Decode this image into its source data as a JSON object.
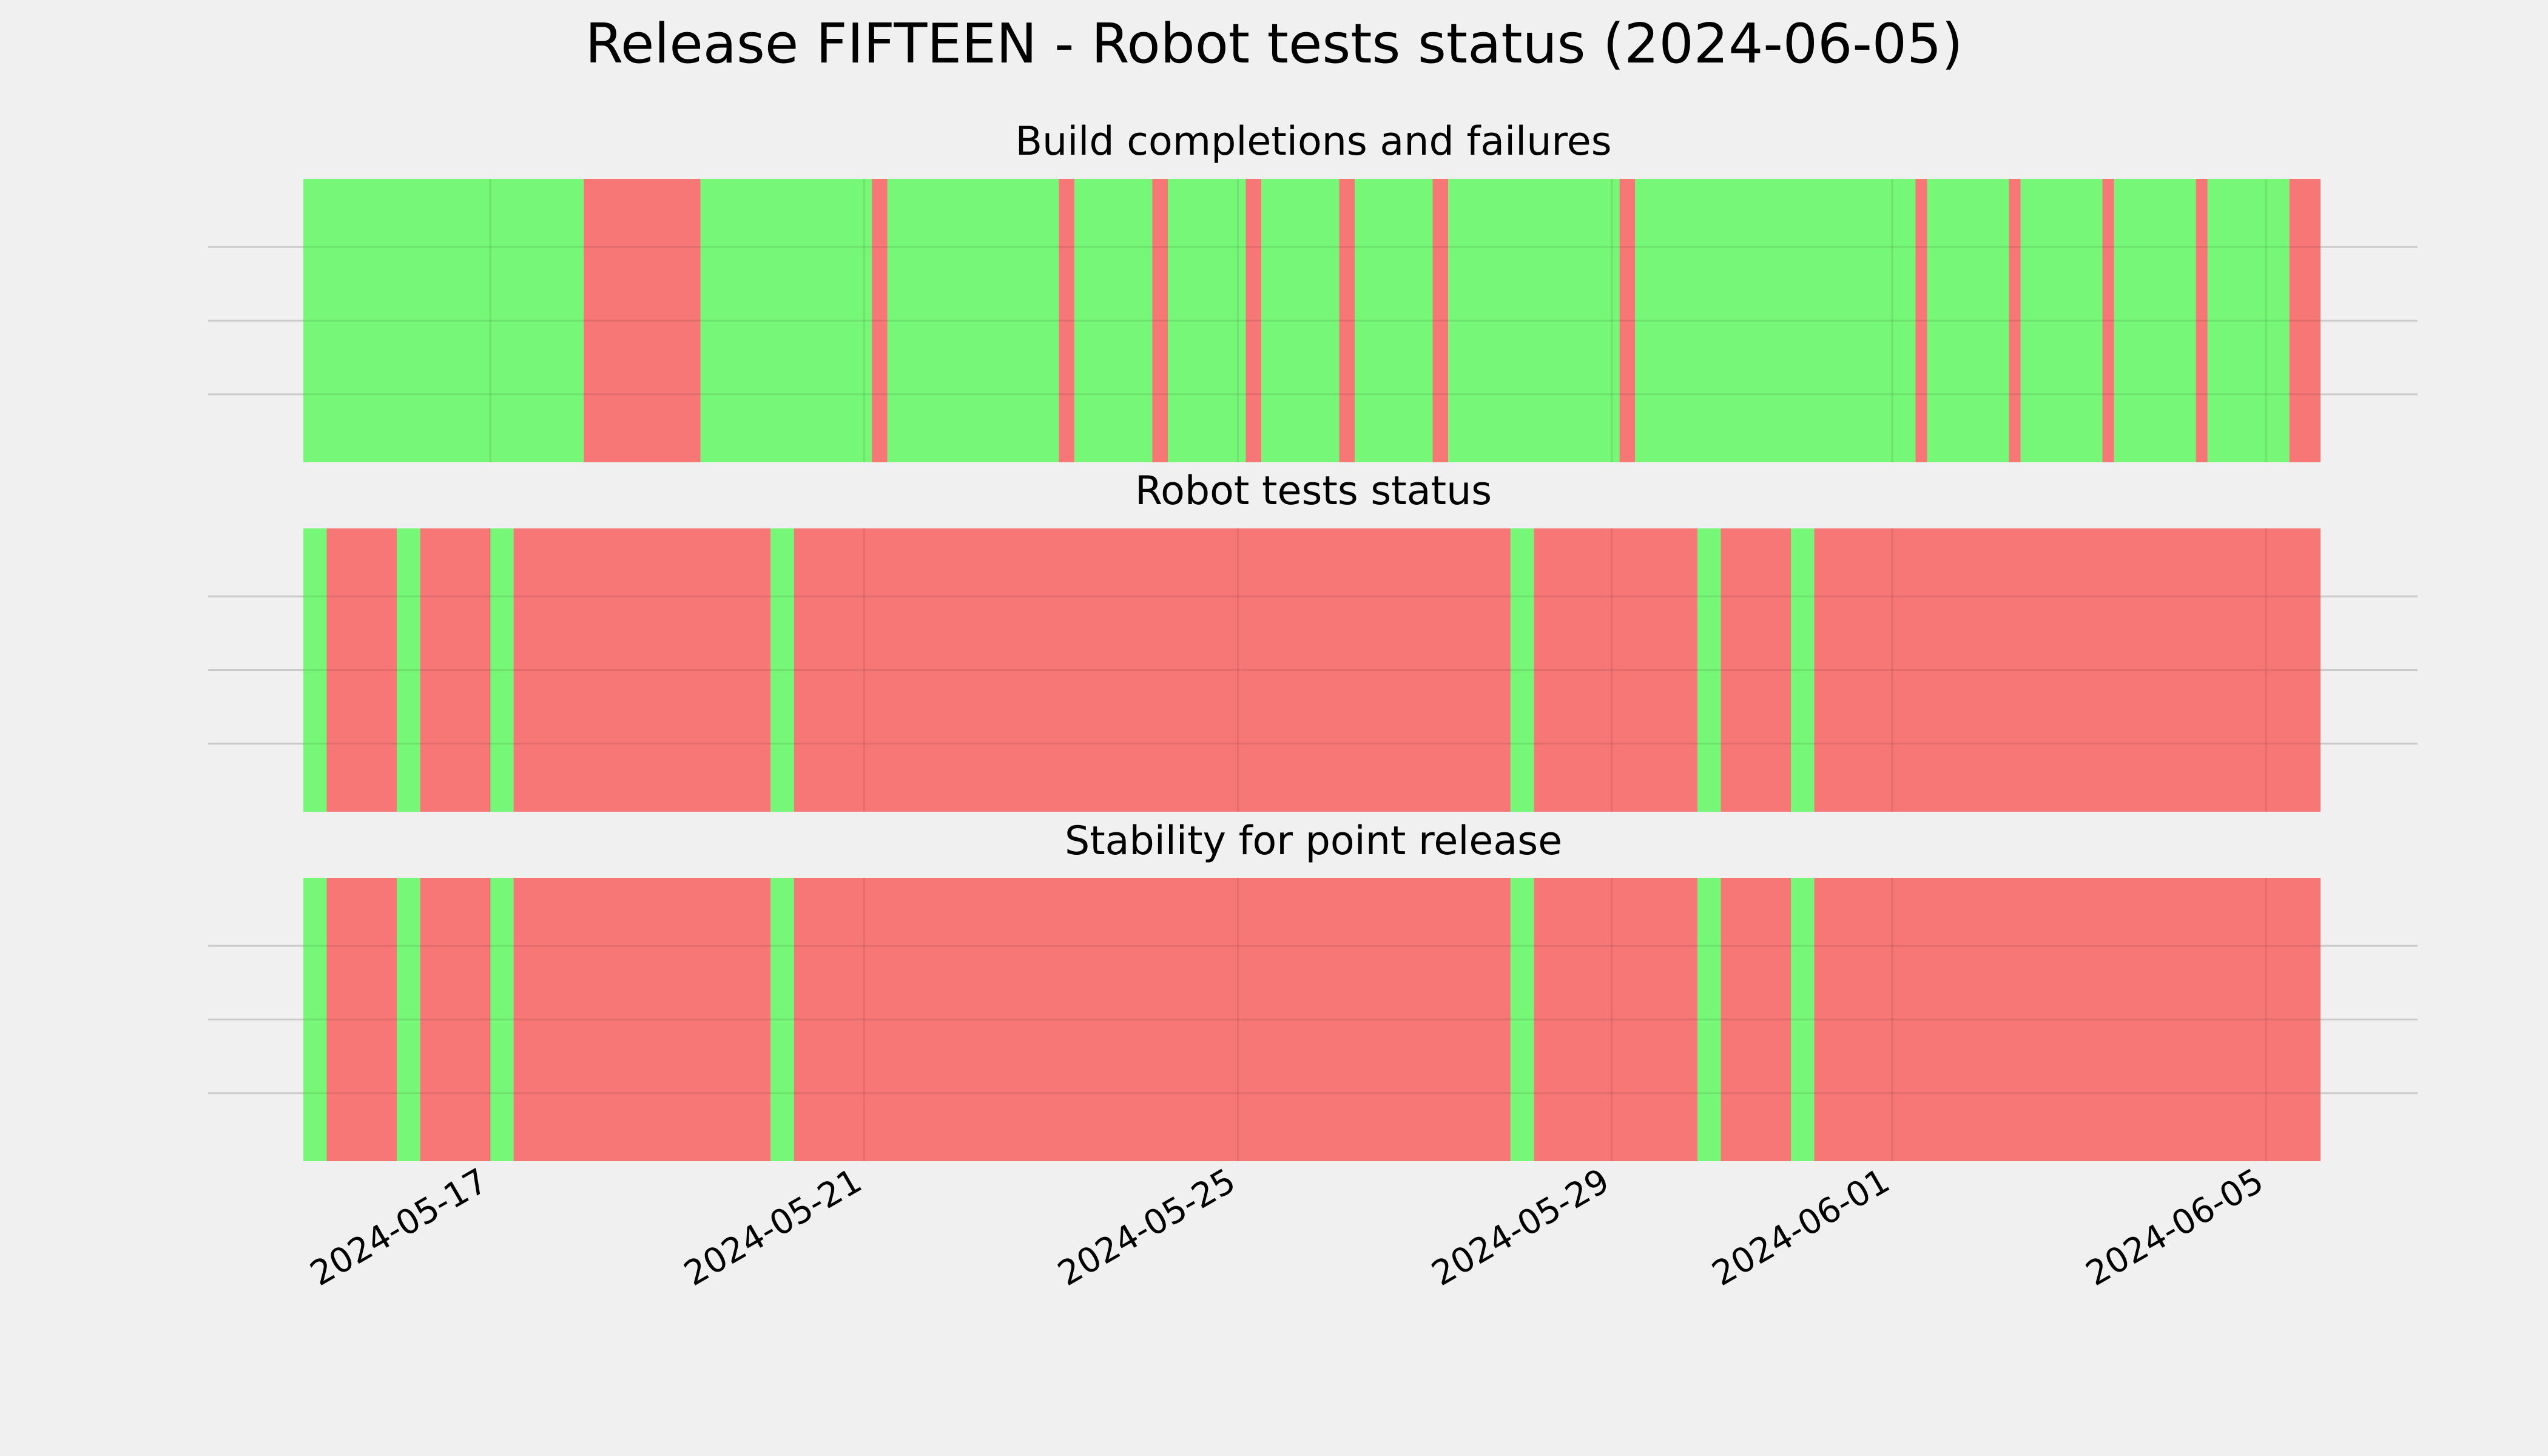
{
  "figure": {
    "title": "Release FIFTEEN - Robot tests status (2024-06-05)",
    "background": "#f0f0f0"
  },
  "colors": {
    "pass": "#77f777",
    "fail": "#f77777",
    "grid": "#cbcbcb"
  },
  "chart_data": {
    "type": "timeline",
    "x_axis": {
      "type": "date",
      "range": [
        "2024-05-15T00:00",
        "2024-06-05T14:00"
      ],
      "tick_labels": [
        "2024-05-17",
        "2024-05-21",
        "2024-05-25",
        "2024-05-29",
        "2024-06-01",
        "2024-06-05"
      ],
      "tick_dates": [
        "2024-05-17",
        "2024-05-21",
        "2024-05-25",
        "2024-05-29",
        "2024-06-01",
        "2024-06-05"
      ]
    },
    "grid": true,
    "panels": [
      {
        "title": "Build completions and failures",
        "segments": [
          {
            "start": "2024-05-15T00:00",
            "end": "2024-05-18T00:00",
            "status": "pass"
          },
          {
            "start": "2024-05-18T00:00",
            "end": "2024-05-19T06:00",
            "status": "fail"
          },
          {
            "start": "2024-05-19T06:00",
            "end": "2024-05-21T02:00",
            "status": "pass"
          },
          {
            "start": "2024-05-21T02:00",
            "end": "2024-05-21T06:00",
            "status": "fail"
          },
          {
            "start": "2024-05-21T06:00",
            "end": "2024-05-23T02:00",
            "status": "pass"
          },
          {
            "start": "2024-05-23T02:00",
            "end": "2024-05-23T06:00",
            "status": "fail"
          },
          {
            "start": "2024-05-23T06:00",
            "end": "2024-05-24T02:00",
            "status": "pass"
          },
          {
            "start": "2024-05-24T02:00",
            "end": "2024-05-24T06:00",
            "status": "fail"
          },
          {
            "start": "2024-05-24T06:00",
            "end": "2024-05-25T02:00",
            "status": "pass"
          },
          {
            "start": "2024-05-25T02:00",
            "end": "2024-05-25T06:00",
            "status": "fail"
          },
          {
            "start": "2024-05-25T06:00",
            "end": "2024-05-26T02:00",
            "status": "pass"
          },
          {
            "start": "2024-05-26T02:00",
            "end": "2024-05-26T06:00",
            "status": "fail"
          },
          {
            "start": "2024-05-26T06:00",
            "end": "2024-05-27T02:00",
            "status": "pass"
          },
          {
            "start": "2024-05-27T02:00",
            "end": "2024-05-27T06:00",
            "status": "fail"
          },
          {
            "start": "2024-05-27T06:00",
            "end": "2024-05-29T02:00",
            "status": "pass"
          },
          {
            "start": "2024-05-29T02:00",
            "end": "2024-05-29T06:00",
            "status": "fail"
          },
          {
            "start": "2024-05-29T06:00",
            "end": "2024-06-01T06:00",
            "status": "pass"
          },
          {
            "start": "2024-06-01T06:00",
            "end": "2024-06-01T09:00",
            "status": "fail"
          },
          {
            "start": "2024-06-01T09:00",
            "end": "2024-06-02T06:00",
            "status": "pass"
          },
          {
            "start": "2024-06-02T06:00",
            "end": "2024-06-02T09:00",
            "status": "fail"
          },
          {
            "start": "2024-06-02T09:00",
            "end": "2024-06-03T06:00",
            "status": "pass"
          },
          {
            "start": "2024-06-03T06:00",
            "end": "2024-06-03T09:00",
            "status": "fail"
          },
          {
            "start": "2024-06-03T09:00",
            "end": "2024-06-04T06:00",
            "status": "pass"
          },
          {
            "start": "2024-06-04T06:00",
            "end": "2024-06-04T09:00",
            "status": "fail"
          },
          {
            "start": "2024-06-04T09:00",
            "end": "2024-06-05T06:00",
            "status": "pass"
          },
          {
            "start": "2024-06-05T06:00",
            "end": "2024-06-05T14:00",
            "status": "fail"
          }
        ]
      },
      {
        "title": "Robot tests status",
        "segments": [
          {
            "start": "2024-05-15T00:00",
            "end": "2024-05-15T06:00",
            "status": "pass"
          },
          {
            "start": "2024-05-15T06:00",
            "end": "2024-05-16T00:00",
            "status": "fail"
          },
          {
            "start": "2024-05-16T00:00",
            "end": "2024-05-16T06:00",
            "status": "pass"
          },
          {
            "start": "2024-05-16T06:00",
            "end": "2024-05-17T00:00",
            "status": "fail"
          },
          {
            "start": "2024-05-17T00:00",
            "end": "2024-05-17T06:00",
            "status": "pass"
          },
          {
            "start": "2024-05-17T06:00",
            "end": "2024-05-20T00:00",
            "status": "fail"
          },
          {
            "start": "2024-05-20T00:00",
            "end": "2024-05-20T06:00",
            "status": "pass"
          },
          {
            "start": "2024-05-20T06:00",
            "end": "2024-05-27T22:00",
            "status": "fail"
          },
          {
            "start": "2024-05-27T22:00",
            "end": "2024-05-28T04:00",
            "status": "pass"
          },
          {
            "start": "2024-05-28T04:00",
            "end": "2024-05-29T22:00",
            "status": "fail"
          },
          {
            "start": "2024-05-29T22:00",
            "end": "2024-05-30T04:00",
            "status": "pass"
          },
          {
            "start": "2024-05-30T04:00",
            "end": "2024-05-30T22:00",
            "status": "fail"
          },
          {
            "start": "2024-05-30T22:00",
            "end": "2024-05-31T04:00",
            "status": "pass"
          },
          {
            "start": "2024-05-31T04:00",
            "end": "2024-06-05T14:00",
            "status": "fail"
          }
        ]
      },
      {
        "title": "Stability for point release",
        "segments": [
          {
            "start": "2024-05-15T00:00",
            "end": "2024-05-15T06:00",
            "status": "pass"
          },
          {
            "start": "2024-05-15T06:00",
            "end": "2024-05-16T00:00",
            "status": "fail"
          },
          {
            "start": "2024-05-16T00:00",
            "end": "2024-05-16T06:00",
            "status": "pass"
          },
          {
            "start": "2024-05-16T06:00",
            "end": "2024-05-17T00:00",
            "status": "fail"
          },
          {
            "start": "2024-05-17T00:00",
            "end": "2024-05-17T06:00",
            "status": "pass"
          },
          {
            "start": "2024-05-17T06:00",
            "end": "2024-05-20T00:00",
            "status": "fail"
          },
          {
            "start": "2024-05-20T00:00",
            "end": "2024-05-20T06:00",
            "status": "pass"
          },
          {
            "start": "2024-05-20T06:00",
            "end": "2024-05-27T22:00",
            "status": "fail"
          },
          {
            "start": "2024-05-27T22:00",
            "end": "2024-05-28T04:00",
            "status": "pass"
          },
          {
            "start": "2024-05-28T04:00",
            "end": "2024-05-29T22:00",
            "status": "fail"
          },
          {
            "start": "2024-05-29T22:00",
            "end": "2024-05-30T04:00",
            "status": "pass"
          },
          {
            "start": "2024-05-30T04:00",
            "end": "2024-05-30T22:00",
            "status": "fail"
          },
          {
            "start": "2024-05-30T22:00",
            "end": "2024-05-31T04:00",
            "status": "pass"
          },
          {
            "start": "2024-05-31T04:00",
            "end": "2024-06-05T14:00",
            "status": "fail"
          }
        ]
      }
    ]
  }
}
